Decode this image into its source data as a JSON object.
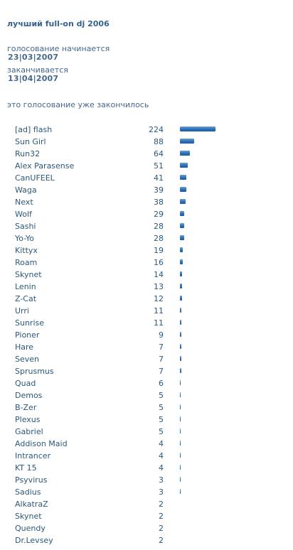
{
  "poll": {
    "title": "лучший full-on dj 2006",
    "start_label": "голосование начинается",
    "start_date": "23|03|2007",
    "end_label": "заканчивается",
    "end_date": "13|04|2007",
    "status": "это голосование уже закончилось",
    "bar_color": "#2a6fb8",
    "max_votes": 224,
    "items": [
      {
        "name": "[ad] flash",
        "votes": 224
      },
      {
        "name": "Sun Girl",
        "votes": 88
      },
      {
        "name": "Run32",
        "votes": 64
      },
      {
        "name": "Alex Parasense",
        "votes": 51
      },
      {
        "name": "CanUFEEL",
        "votes": 41
      },
      {
        "name": "Waga",
        "votes": 39
      },
      {
        "name": "Next",
        "votes": 38
      },
      {
        "name": "Wolf",
        "votes": 29
      },
      {
        "name": "Sashi",
        "votes": 28
      },
      {
        "name": "Yo-Yo",
        "votes": 28
      },
      {
        "name": "Kittyx",
        "votes": 19
      },
      {
        "name": "Roam",
        "votes": 16
      },
      {
        "name": "Skynet",
        "votes": 14
      },
      {
        "name": "Lenin",
        "votes": 13
      },
      {
        "name": "Z-Cat",
        "votes": 12
      },
      {
        "name": "Urri",
        "votes": 11
      },
      {
        "name": "Sunrise",
        "votes": 11
      },
      {
        "name": "Pioner",
        "votes": 9
      },
      {
        "name": "Hare",
        "votes": 7
      },
      {
        "name": "Seven",
        "votes": 7
      },
      {
        "name": "Sprusmus",
        "votes": 7
      },
      {
        "name": "Quad",
        "votes": 6
      },
      {
        "name": "Demos",
        "votes": 5
      },
      {
        "name": "B-Zer",
        "votes": 5
      },
      {
        "name": "Plexus",
        "votes": 5
      },
      {
        "name": "Gabriel",
        "votes": 5
      },
      {
        "name": "Addison Maid",
        "votes": 4
      },
      {
        "name": "Intrancer",
        "votes": 4
      },
      {
        "name": "KT 15",
        "votes": 4
      },
      {
        "name": "Psyvirus",
        "votes": 3
      },
      {
        "name": "Sadius",
        "votes": 3
      },
      {
        "name": "AlkatraZ",
        "votes": 2
      },
      {
        "name": "Skynet",
        "votes": 2
      },
      {
        "name": "Quendy",
        "votes": 2
      },
      {
        "name": "Dr.Levsey",
        "votes": 2
      }
    ]
  }
}
